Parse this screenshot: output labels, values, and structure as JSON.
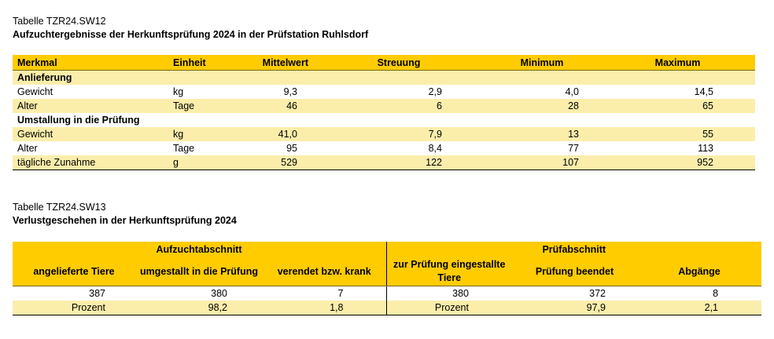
{
  "table1": {
    "id": "Tabelle TZR24.SW12",
    "title": "Aufzuchtergebnisse der Herkunftsprüfung 2024 in der Prüfstation Ruhlsdorf",
    "headers": {
      "merkmal": "Merkmal",
      "einheit": "Einheit",
      "mittelwert": "Mittelwert",
      "streuung": "Streuung",
      "minimum": "Minimum",
      "maximum": "Maximum"
    },
    "sections": [
      {
        "title": "Anlieferung",
        "rows": [
          {
            "merkmal": "Gewicht",
            "einheit": "kg",
            "mittelwert": "9,3",
            "streuung": "2,9",
            "minimum": "4,0",
            "maximum": "14,5"
          },
          {
            "merkmal": "Alter",
            "einheit": "Tage",
            "mittelwert": "46",
            "streuung": "6",
            "minimum": "28",
            "maximum": "65"
          }
        ]
      },
      {
        "title": "Umstallung in die Prüfung",
        "rows": [
          {
            "merkmal": "Gewicht",
            "einheit": "kg",
            "mittelwert": "41,0",
            "streuung": "7,9",
            "minimum": "13",
            "maximum": "55"
          },
          {
            "merkmal": "Alter",
            "einheit": "Tage",
            "mittelwert": "95",
            "streuung": "8,4",
            "minimum": "77",
            "maximum": "113"
          },
          {
            "merkmal": "tägliche Zunahme",
            "einheit": "g",
            "mittelwert": "529",
            "streuung": "122",
            "minimum": "107",
            "maximum": "952"
          }
        ]
      }
    ]
  },
  "table2": {
    "id": "Tabelle TZR24.SW13",
    "title": "Verlustgeschehen in der Herkunftsprüfung 2024",
    "group_headers": {
      "aufzucht": "Aufzuchtabschnitt",
      "pruef": "Prüfabschnitt"
    },
    "headers": {
      "angelieferte": "angelieferte Tiere",
      "umgestallt": "umgestallt in die Prüfung",
      "verendet": "verendet bzw. krank",
      "eingestallt": "zur Prüfung eingestallte Tiere",
      "beendet": "Prüfung beendet",
      "abgaenge": "Abgänge"
    },
    "rows": [
      {
        "angelieferte": "387",
        "umgestallt": "380",
        "verendet": "7",
        "eingestallt": "380",
        "beendet": "372",
        "abgaenge": "8"
      },
      {
        "angelieferte": "Prozent",
        "umgestallt": "98,2",
        "verendet": "1,8",
        "eingestallt": "Prozent",
        "beendet": "97,9",
        "abgaenge": "2,1"
      }
    ]
  }
}
